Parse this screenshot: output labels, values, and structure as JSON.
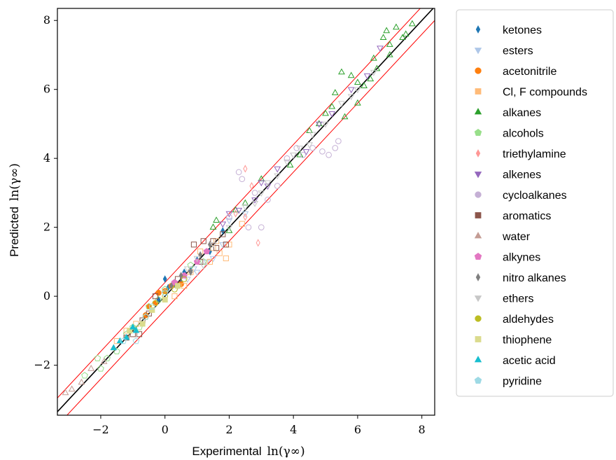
{
  "chart_data": {
    "type": "scatter",
    "title": "",
    "xlabel": "Experimental",
    "xlabel_math": "ln(γ∞)",
    "ylabel": "Predicted",
    "ylabel_math": "ln(γ∞)",
    "xlim": [
      -3.35,
      8.4
    ],
    "ylim": [
      -3.45,
      8.35
    ],
    "xticks": [
      -2,
      0,
      2,
      4,
      6,
      8
    ],
    "xtick_labels": [
      "−2",
      "0",
      "2",
      "4",
      "6",
      "8"
    ],
    "yticks": [
      -2,
      0,
      2,
      4,
      6,
      8
    ],
    "ytick_labels": [
      "−2",
      "0",
      "2",
      "4",
      "6",
      "8"
    ],
    "grid": false,
    "legend_position": "outside right",
    "reference_lines": [
      {
        "name": "parity",
        "color": "#000000",
        "slope": 1,
        "intercept": 0
      },
      {
        "name": "upper bound",
        "color": "#ff0000",
        "slope": 1,
        "intercept": 0.4
      },
      {
        "name": "lower bound",
        "color": "#ff0000",
        "slope": 1,
        "intercept": -0.4
      }
    ],
    "series": [
      {
        "name": "ketones",
        "marker": "thin_diamond",
        "filled": true,
        "color": "#1f77b4",
        "points": [
          [
            0.0,
            0.5
          ],
          [
            0.3,
            0.35
          ],
          [
            0.6,
            0.7
          ],
          [
            1.0,
            1.05
          ],
          [
            0.8,
            0.75
          ],
          [
            1.4,
            1.3
          ],
          [
            -0.2,
            -0.1
          ],
          [
            0.1,
            0.25
          ],
          [
            0.5,
            0.4
          ],
          [
            1.8,
            1.9
          ]
        ]
      },
      {
        "name": "esters",
        "marker": "triangle_down",
        "filled": false,
        "color": "#aec7e8",
        "points": [
          [
            0.4,
            0.3
          ],
          [
            1.0,
            0.7
          ],
          [
            1.5,
            1.1
          ],
          [
            1.2,
            0.9
          ],
          [
            0.7,
            0.5
          ],
          [
            1.8,
            1.5
          ],
          [
            2.0,
            2.2
          ],
          [
            2.5,
            2.4
          ],
          [
            1.3,
            1.0
          ],
          [
            0.9,
            0.8
          ]
        ]
      },
      {
        "name": "acetonitrile",
        "marker": "circle",
        "filled": true,
        "color": "#ff7f0e",
        "points": [
          [
            -0.2,
            0.1
          ],
          [
            0.0,
            0.15
          ],
          [
            -0.5,
            -0.3
          ],
          [
            0.2,
            0.3
          ],
          [
            -0.3,
            -0.2
          ],
          [
            0.5,
            0.35
          ],
          [
            -0.6,
            -0.55
          ]
        ]
      },
      {
        "name": "Cl, F compounds",
        "marker": "square",
        "filled": false,
        "color": "#ffbb78",
        "points": [
          [
            1.5,
            1.4
          ],
          [
            1.7,
            1.25
          ],
          [
            1.9,
            1.1
          ],
          [
            2.0,
            1.5
          ],
          [
            1.4,
            1.0
          ],
          [
            -1.5,
            -1.3
          ],
          [
            -0.9,
            -0.8
          ],
          [
            0.3,
            0.0
          ],
          [
            0.8,
            0.7
          ],
          [
            1.1,
            1.3
          ],
          [
            2.4,
            2.1
          ],
          [
            -1.2,
            -1.0
          ],
          [
            0.6,
            0.3
          ],
          [
            1.6,
            1.6
          ]
        ]
      },
      {
        "name": "alkanes",
        "marker": "triangle_up",
        "filled": false,
        "color": "#2ca02c",
        "points": [
          [
            5.5,
            6.5
          ],
          [
            6.0,
            6.2
          ],
          [
            6.5,
            6.9
          ],
          [
            7.0,
            7.3
          ],
          [
            7.5,
            7.6
          ],
          [
            7.7,
            7.9
          ],
          [
            7.2,
            7.8
          ],
          [
            6.8,
            7.5
          ],
          [
            6.2,
            6.1
          ],
          [
            5.8,
            6.4
          ],
          [
            5.2,
            5.5
          ],
          [
            4.8,
            5.0
          ],
          [
            4.5,
            4.8
          ],
          [
            5.0,
            5.3
          ],
          [
            6.4,
            6.3
          ],
          [
            7.0,
            7.0
          ],
          [
            5.6,
            5.2
          ],
          [
            6.0,
            5.6
          ],
          [
            6.6,
            6.6
          ],
          [
            4.2,
            4.1
          ],
          [
            3.9,
            3.8
          ],
          [
            3.0,
            3.4
          ],
          [
            2.5,
            2.7
          ],
          [
            2.2,
            2.5
          ],
          [
            1.6,
            2.2
          ],
          [
            1.5,
            2.0
          ],
          [
            2.0,
            1.9
          ],
          [
            6.9,
            7.7
          ],
          [
            7.4,
            7.5
          ],
          [
            5.3,
            5.9
          ]
        ]
      },
      {
        "name": "alcohols",
        "marker": "pentagon",
        "filled": false,
        "color": "#98df8a",
        "points": [
          [
            -2.1,
            -1.8
          ],
          [
            -1.8,
            -1.8
          ],
          [
            -2.0,
            -2.1
          ],
          [
            -1.5,
            -1.6
          ],
          [
            -1.2,
            -1.1
          ],
          [
            -0.8,
            -0.9
          ],
          [
            -0.5,
            -0.3
          ],
          [
            -0.2,
            -0.1
          ],
          [
            0.0,
            0.2
          ],
          [
            0.3,
            0.4
          ],
          [
            0.8,
            0.9
          ],
          [
            1.2,
            1.0
          ],
          [
            -2.5,
            -2.3
          ],
          [
            -1.0,
            -0.9
          ]
        ]
      },
      {
        "name": "triethylamine",
        "marker": "thin_diamond",
        "filled": false,
        "color": "#ff9896",
        "points": [
          [
            2.5,
            3.7
          ],
          [
            2.9,
            1.55
          ],
          [
            2.7,
            3.2
          ],
          [
            2.2,
            2.4
          ],
          [
            2.5,
            2.3
          ]
        ]
      },
      {
        "name": "alkenes",
        "marker": "triangle_down",
        "filled": false,
        "color": "#9467bd",
        "points": [
          [
            2.0,
            2.4
          ],
          [
            2.3,
            2.5
          ],
          [
            2.8,
            2.8
          ],
          [
            3.2,
            3.2
          ],
          [
            3.5,
            3.7
          ],
          [
            4.0,
            4.1
          ],
          [
            4.4,
            4.2
          ],
          [
            4.8,
            5.0
          ],
          [
            5.2,
            5.3
          ],
          [
            5.8,
            6.0
          ],
          [
            6.3,
            6.4
          ],
          [
            6.7,
            7.2
          ],
          [
            3.0,
            3.3
          ],
          [
            1.8,
            2.1
          ]
        ]
      },
      {
        "name": "cycloalkanes",
        "marker": "circle",
        "filled": false,
        "color": "#c5b0d5",
        "points": [
          [
            2.6,
            2.0
          ],
          [
            3.0,
            2.0
          ],
          [
            2.3,
            3.6
          ],
          [
            2.4,
            3.4
          ],
          [
            2.8,
            3.0
          ],
          [
            3.5,
            3.2
          ],
          [
            4.3,
            4.1
          ],
          [
            4.6,
            4.3
          ],
          [
            5.1,
            4.1
          ],
          [
            5.4,
            4.5
          ],
          [
            5.3,
            4.3
          ],
          [
            4.9,
            4.2
          ],
          [
            3.8,
            4.0
          ],
          [
            4.1,
            4.3
          ],
          [
            3.2,
            2.8
          ],
          [
            2.0,
            2.3
          ]
        ]
      },
      {
        "name": "aromatics",
        "marker": "square",
        "filled": false,
        "color": "#8c564b",
        "points": [
          [
            0.9,
            1.5
          ],
          [
            1.2,
            1.6
          ],
          [
            1.5,
            1.6
          ],
          [
            1.8,
            1.8
          ],
          [
            1.9,
            1.5
          ],
          [
            1.6,
            1.4
          ],
          [
            1.1,
            1.0
          ],
          [
            -0.5,
            -0.5
          ],
          [
            -0.3,
            0.0
          ],
          [
            -0.7,
            -0.7
          ],
          [
            -0.8,
            -1.1
          ],
          [
            -1.0,
            -1.1
          ],
          [
            -1.2,
            -1.2
          ],
          [
            0.4,
            0.5
          ]
        ]
      },
      {
        "name": "water",
        "marker": "triangle_up",
        "filled": false,
        "color": "#c49c94",
        "points": [
          [
            -3.1,
            -2.8
          ],
          [
            -2.9,
            -2.7
          ],
          [
            -2.6,
            -2.5
          ],
          [
            -2.3,
            -2.1
          ],
          [
            -1.9,
            -1.9
          ],
          [
            -1.6,
            -1.5
          ]
        ]
      },
      {
        "name": "alkynes",
        "marker": "pentagon",
        "filled": true,
        "color": "#e377c2",
        "points": [
          [
            0.3,
            0.4
          ],
          [
            0.6,
            0.6
          ],
          [
            1.0,
            1.0
          ],
          [
            1.3,
            1.3
          ]
        ]
      },
      {
        "name": "nitro alkanes",
        "marker": "thin_diamond",
        "filled": true,
        "color": "#7f7f7f",
        "points": [
          [
            0.2,
            0.3
          ],
          [
            0.5,
            0.6
          ],
          [
            0.8,
            0.7
          ],
          [
            1.1,
            1.2
          ],
          [
            1.4,
            1.5
          ]
        ]
      },
      {
        "name": "ethers",
        "marker": "triangle_down",
        "filled": false,
        "color": "#c7c7c7",
        "points": [
          [
            1.0,
            1.1
          ],
          [
            1.5,
            1.5
          ],
          [
            2.0,
            2.0
          ],
          [
            2.5,
            2.6
          ],
          [
            3.0,
            3.0
          ],
          [
            3.5,
            3.5
          ],
          [
            4.0,
            4.1
          ],
          [
            4.5,
            4.4
          ],
          [
            5.0,
            5.0
          ],
          [
            5.5,
            5.6
          ],
          [
            6.0,
            6.0
          ],
          [
            6.5,
            6.5
          ],
          [
            3.2,
            3.3
          ],
          [
            2.8,
            2.7
          ],
          [
            4.2,
            4.3
          ],
          [
            1.2,
            0.9
          ],
          [
            0.7,
            0.8
          ],
          [
            3.8,
            3.9
          ],
          [
            4.6,
            4.7
          ],
          [
            5.8,
            5.8
          ]
        ]
      },
      {
        "name": "aldehydes",
        "marker": "circle",
        "filled": false,
        "color": "#bcbd22",
        "points": [
          [
            -0.3,
            -0.2
          ],
          [
            0.0,
            0.0
          ],
          [
            0.3,
            0.2
          ],
          [
            0.6,
            0.5
          ],
          [
            -0.6,
            -0.6
          ]
        ]
      },
      {
        "name": "thiophene",
        "marker": "square",
        "filled": true,
        "color": "#dbdb8d",
        "points": [
          [
            -1.1,
            -1.0
          ],
          [
            -0.7,
            -0.8
          ],
          [
            -0.4,
            -0.4
          ],
          [
            0.0,
            -0.1
          ],
          [
            0.4,
            0.3
          ]
        ]
      },
      {
        "name": "acetic acid",
        "marker": "triangle_up",
        "filled": true,
        "color": "#17becf",
        "points": [
          [
            -1.6,
            -1.5
          ],
          [
            -1.4,
            -1.3
          ],
          [
            -1.2,
            -1.2
          ],
          [
            -1.0,
            -0.9
          ],
          [
            -0.9,
            -1.0
          ]
        ]
      },
      {
        "name": "pyridine",
        "marker": "pentagon",
        "filled": false,
        "color": "#9edae5",
        "points": [
          [
            -0.9,
            -1.3
          ],
          [
            -1.3,
            -1.3
          ],
          [
            -0.6,
            -0.6
          ],
          [
            -0.4,
            -0.3
          ],
          [
            0.0,
            0.1
          ]
        ]
      }
    ]
  }
}
